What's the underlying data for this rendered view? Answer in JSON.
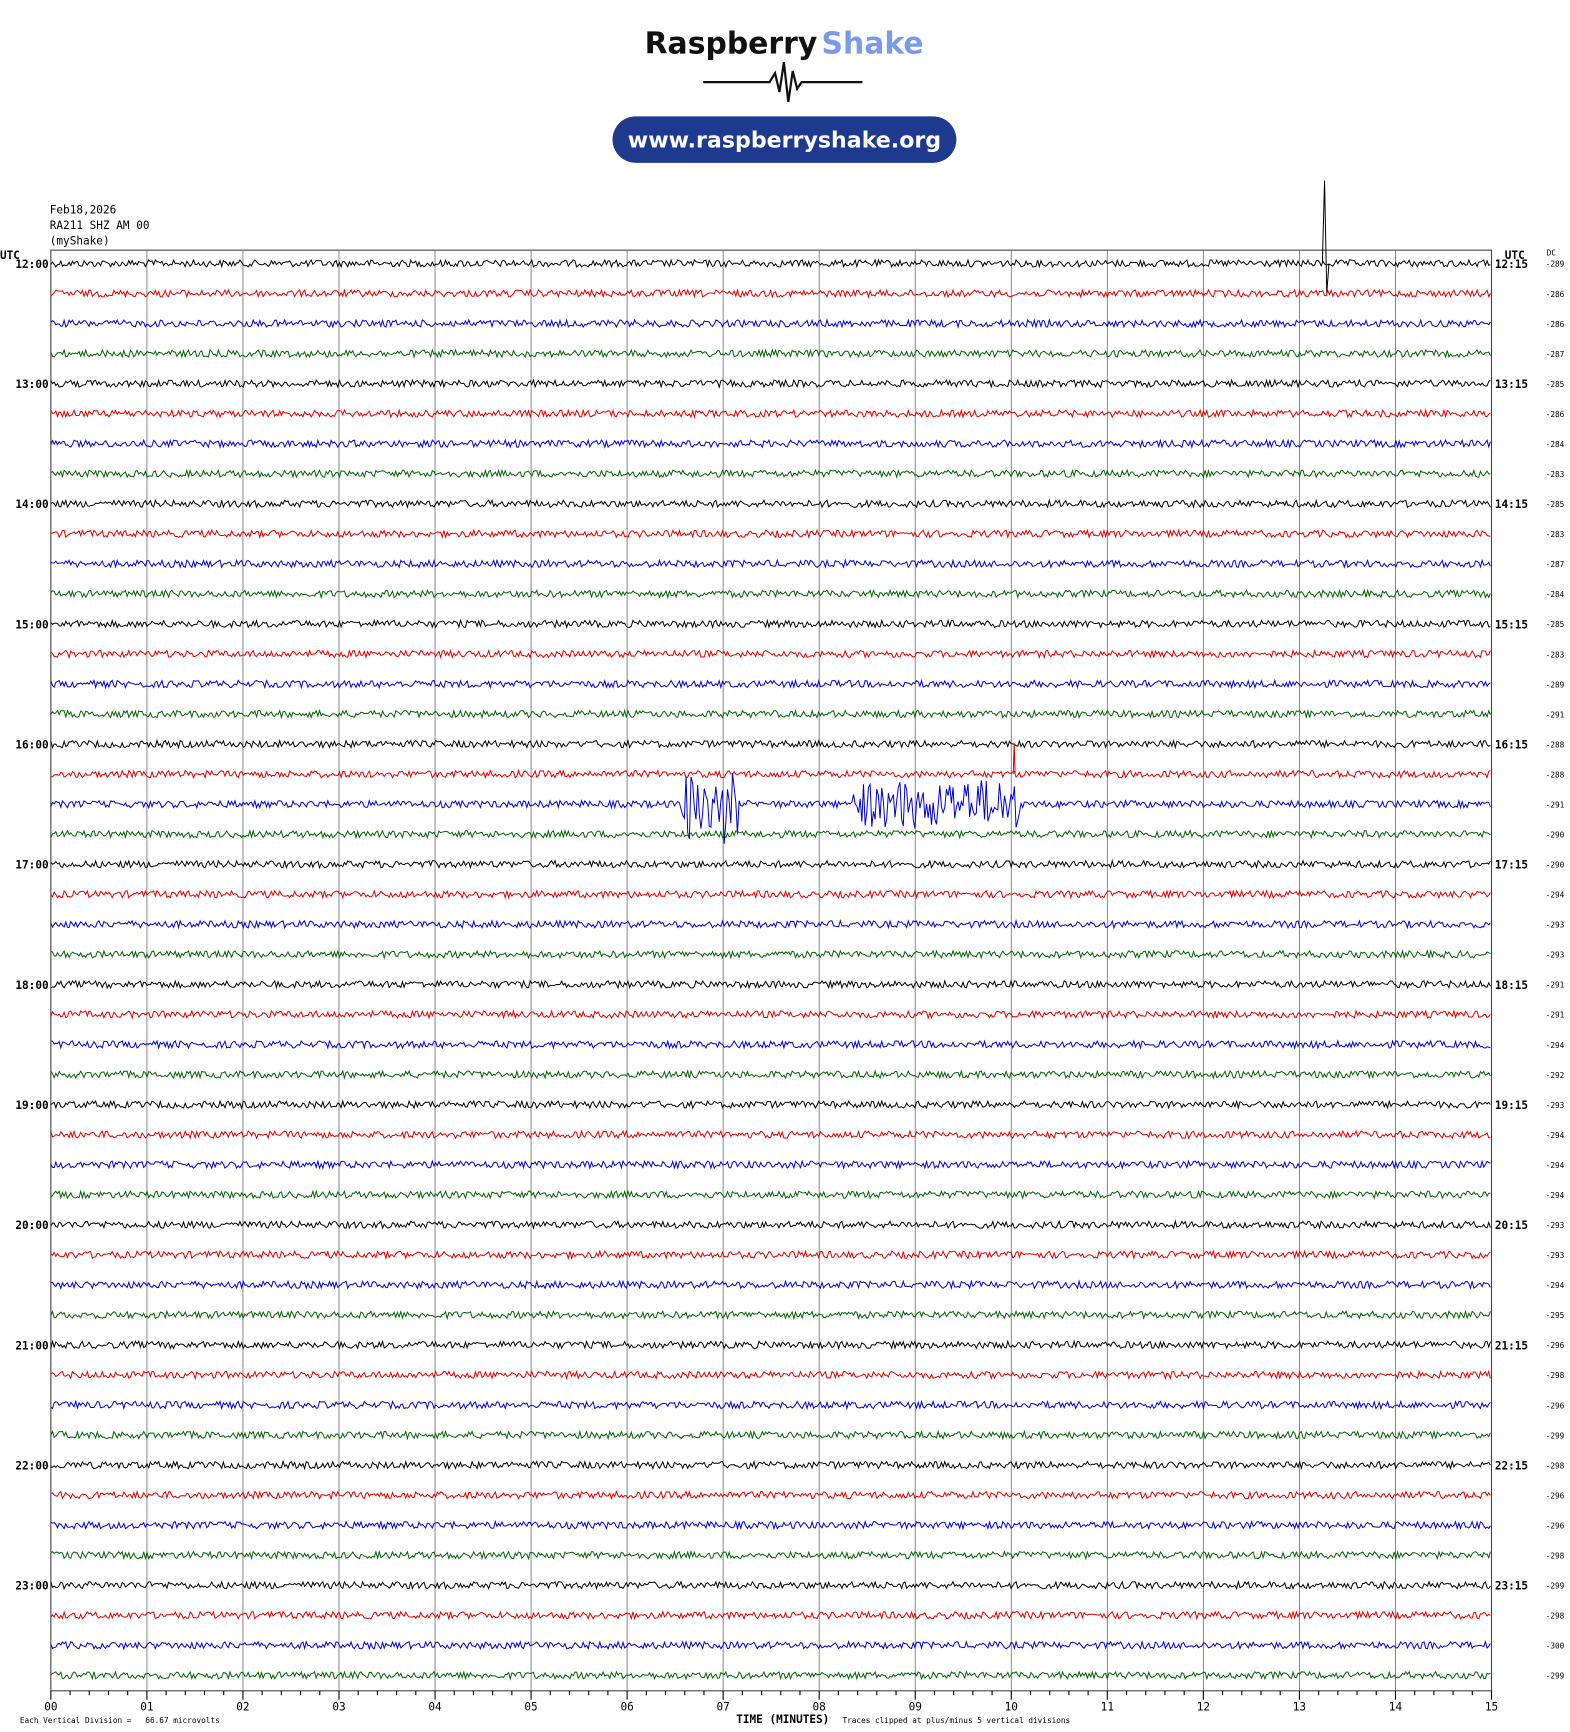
{
  "header": {
    "logo_word1": "Raspberry",
    "logo_word2": "Shake",
    "url": "www.raspberryshake.org"
  },
  "station": {
    "date": "Feb18,2026",
    "channel": "RA211 SHZ AM 00",
    "network": "(myShake)"
  },
  "left_label": "UTC",
  "right_label": "UTC",
  "dc_label": "DC",
  "hour_labels": [
    "12:00",
    "13:00",
    "14:00",
    "15:00",
    "16:00",
    "17:00",
    "18:00",
    "19:00",
    "20:00",
    "21:00",
    "22:00",
    "23:00"
  ],
  "quarter_labels": [
    "12:15",
    "13:15",
    "14:15",
    "15:15",
    "16:15",
    "17:15",
    "18:15",
    "19:15",
    "20:15",
    "21:15",
    "22:15",
    "23:15"
  ],
  "dc_offsets": [
    -289,
    -286,
    -286,
    -287,
    -285,
    -286,
    -284,
    -283,
    -285,
    -283,
    -287,
    -284,
    -285,
    -283,
    -289,
    -291,
    -288,
    -288,
    -291,
    -290,
    -290,
    -294,
    -293,
    -293,
    -291,
    -291,
    -294,
    -292,
    -293,
    -294,
    -294,
    -294,
    -293,
    -293,
    -294,
    -295,
    -296,
    -298,
    -296,
    -299,
    -298,
    -296,
    -296,
    -298,
    -299,
    -298,
    -300,
    -299
  ],
  "x_ticks": [
    "00",
    "01",
    "02",
    "03",
    "04",
    "05",
    "06",
    "07",
    "08",
    "09",
    "10",
    "11",
    "12",
    "13",
    "14",
    "15"
  ],
  "x_axis_label": "TIME (MINUTES)",
  "footer": {
    "scale": "Each Vertical Division =   66.67 microvolts",
    "clip": "Traces clipped at plus/minus 5 vertical divisions"
  }
}
